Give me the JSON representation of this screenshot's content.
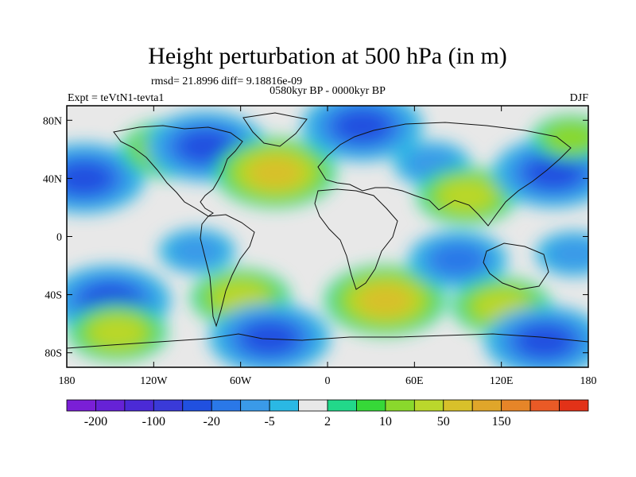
{
  "header": {
    "title": "Height perturbation at 500 hPa (in m)",
    "stats": "rmsd= 21.8996 diff= 9.18816e-09",
    "period": "0580kyr BP - 0000kyr BP",
    "experiment": "Expt = teVtN1-tevta1",
    "season": "DJF"
  },
  "map": {
    "projection": "cylindrical equidistant",
    "lon_range": [
      -180,
      180
    ],
    "lat_range": [
      -90,
      90
    ],
    "lat_ticks": [
      {
        "value": 80,
        "label": "80N"
      },
      {
        "value": 40,
        "label": "40N"
      },
      {
        "value": 0,
        "label": "0"
      },
      {
        "value": -40,
        "label": "40S"
      },
      {
        "value": -80,
        "label": "80S"
      }
    ],
    "lon_ticks": [
      {
        "value": -180,
        "label": "180"
      },
      {
        "value": -120,
        "label": "120W"
      },
      {
        "value": -60,
        "label": "60W"
      },
      {
        "value": 0,
        "label": "0"
      },
      {
        "value": 60,
        "label": "60E"
      },
      {
        "value": 120,
        "label": "120E"
      },
      {
        "value": 180,
        "label": "180"
      }
    ],
    "anomaly_centers": [
      {
        "lon": -168,
        "lat": 40,
        "level": -4
      },
      {
        "lon": -108,
        "lat": 60,
        "level": 3
      },
      {
        "lon": -84,
        "lat": 62,
        "level": -4
      },
      {
        "lon": -36,
        "lat": 44,
        "level": 4
      },
      {
        "lon": 24,
        "lat": 76,
        "level": -4
      },
      {
        "lon": 72,
        "lat": 50,
        "level": -2
      },
      {
        "lon": 96,
        "lat": 28,
        "level": 3
      },
      {
        "lon": 156,
        "lat": 44,
        "level": -4
      },
      {
        "lon": 168,
        "lat": 68,
        "level": 2
      },
      {
        "lon": -150,
        "lat": -44,
        "level": -4
      },
      {
        "lon": -145,
        "lat": -66,
        "level": 3
      },
      {
        "lon": -90,
        "lat": -10,
        "level": -2
      },
      {
        "lon": -60,
        "lat": -42,
        "level": 3
      },
      {
        "lon": -40,
        "lat": -70,
        "level": -4
      },
      {
        "lon": 40,
        "lat": -44,
        "level": 4
      },
      {
        "lon": 90,
        "lat": -16,
        "level": -3
      },
      {
        "lon": 120,
        "lat": -48,
        "level": 3
      },
      {
        "lon": 170,
        "lat": -12,
        "level": -2
      },
      {
        "lon": 150,
        "lat": -72,
        "level": -4
      }
    ]
  },
  "colorbar": {
    "colors": [
      "#7a1fd6",
      "#6622d6",
      "#4b2ad6",
      "#3a3ad8",
      "#2050e0",
      "#2a78e8",
      "#3a9ae8",
      "#2ab8e4",
      "#e8e8e8",
      "#22d88a",
      "#36d838",
      "#8ad82c",
      "#bad72c",
      "#d8c02a",
      "#e0a62a",
      "#e68528",
      "#ea5a26",
      "#e23218"
    ],
    "labels": [
      "-200",
      "-100",
      "-20",
      "-5",
      "2",
      "10",
      "50",
      "150"
    ]
  }
}
